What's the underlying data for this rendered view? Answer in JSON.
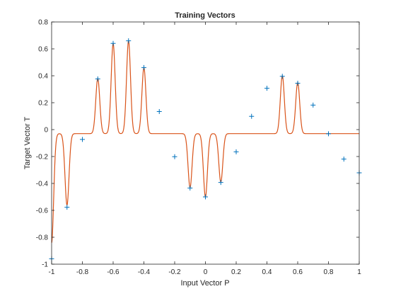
{
  "chart_data": {
    "type": "line",
    "title": "Training Vectors",
    "xlabel": "Input Vector P",
    "ylabel": "Target Vector T",
    "xlim": [
      -1,
      1
    ],
    "ylim": [
      -1,
      0.8
    ],
    "xticks": [
      -1,
      -0.8,
      -0.6,
      -0.4,
      -0.2,
      0,
      0.2,
      0.4,
      0.6,
      0.8,
      1
    ],
    "xtick_labels": [
      "-1",
      "-0.8",
      "-0.6",
      "-0.4",
      "-0.2",
      "0",
      "0.2",
      "0.4",
      "0.6",
      "0.8",
      "1"
    ],
    "yticks": [
      -1,
      -0.8,
      -0.6,
      -0.4,
      -0.2,
      0,
      0.2,
      0.4,
      0.6,
      0.8
    ],
    "ytick_labels": [
      "-1",
      "-0.8",
      "-0.6",
      "-0.4",
      "-0.2",
      "0",
      "0.2",
      "0.4",
      "0.6",
      "0.8"
    ],
    "grid": false,
    "box": true,
    "series": [
      {
        "kind": "scatter",
        "marker": "+",
        "color": "#0072BD",
        "x": [
          -1,
          -0.9,
          -0.8,
          -0.7,
          -0.6,
          -0.5,
          -0.4,
          -0.3,
          -0.2,
          -0.1,
          0,
          0.1,
          0.2,
          0.3,
          0.4,
          0.5,
          0.6,
          0.7,
          0.8,
          0.9,
          1
        ],
        "y": [
          -0.96,
          -0.577,
          -0.073,
          0.377,
          0.641,
          0.66,
          0.461,
          0.134,
          -0.201,
          -0.434,
          -0.5,
          -0.393,
          -0.165,
          0.099,
          0.307,
          0.396,
          0.345,
          0.182,
          -0.031,
          -0.219,
          -0.321
        ]
      },
      {
        "kind": "line",
        "color": "#D95319",
        "baseline": -0.03,
        "rbf_width": 0.013,
        "x": [
          -1,
          -0.9,
          -0.7,
          -0.6,
          -0.5,
          -0.4,
          -0.1,
          0,
          0.1,
          0.5,
          0.6
        ],
        "y": [
          -0.84,
          -0.56,
          0.38,
          0.64,
          0.66,
          0.46,
          -0.43,
          -0.5,
          -0.39,
          0.4,
          0.35
        ]
      }
    ]
  }
}
